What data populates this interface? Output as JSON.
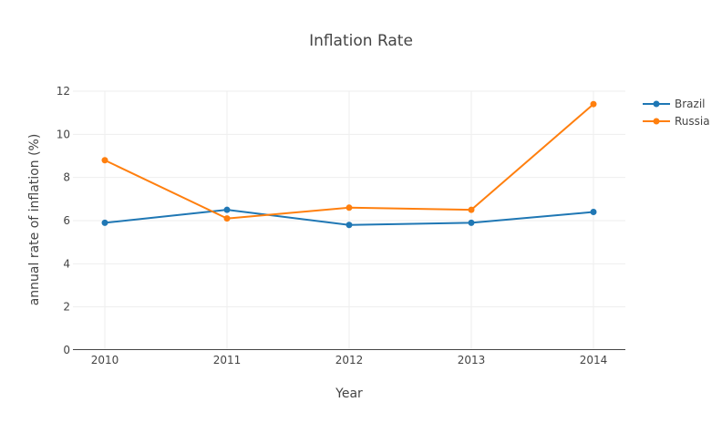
{
  "chart_data": {
    "type": "line",
    "title": "Inflation Rate",
    "xlabel": "Year",
    "ylabel": "annual rate of inflation (%)",
    "x": [
      "2010",
      "2011",
      "2012",
      "2013",
      "2014"
    ],
    "yticks": [
      "0",
      "2",
      "4",
      "6",
      "8",
      "10",
      "12"
    ],
    "ylim": [
      0,
      12
    ],
    "grid": true,
    "legend": "top-right",
    "series": [
      {
        "name": "Brazil",
        "color": "#1f77b4",
        "values": [
          5.9,
          6.5,
          5.8,
          5.9,
          6.4
        ]
      },
      {
        "name": "Russia",
        "color": "#ff7f0e",
        "values": [
          8.8,
          6.1,
          6.6,
          6.5,
          11.4
        ]
      }
    ]
  }
}
